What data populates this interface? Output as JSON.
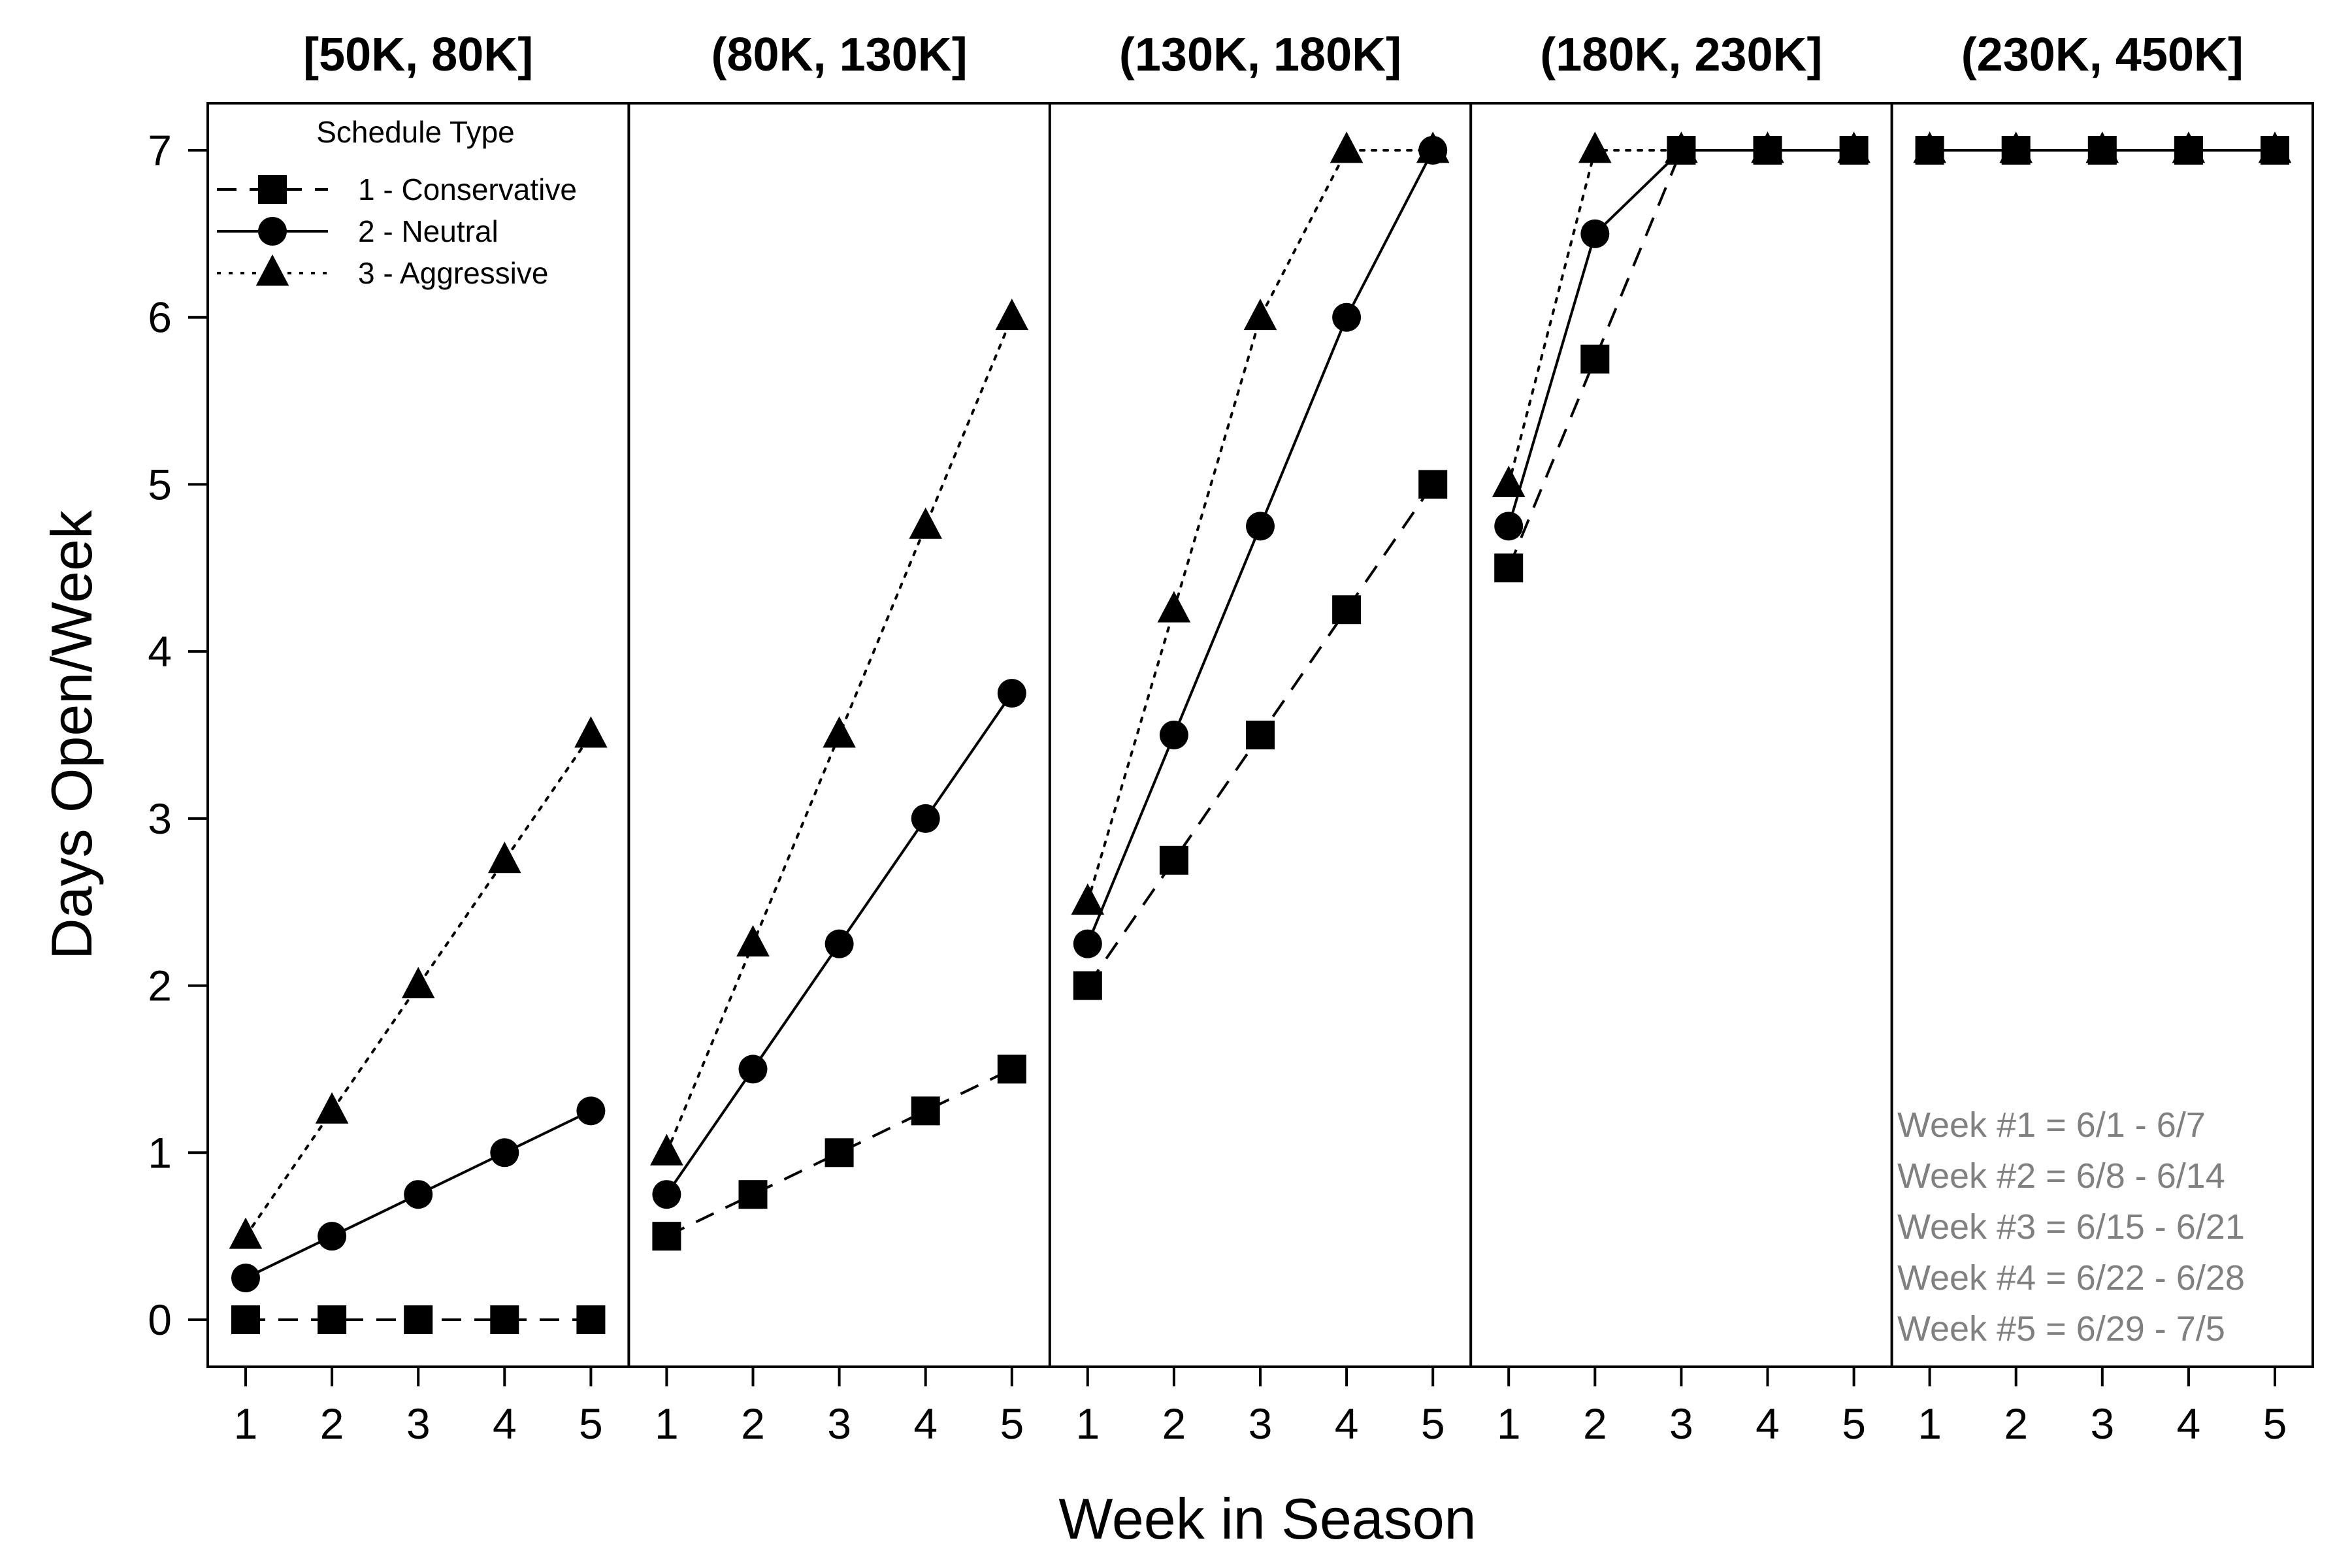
{
  "chart_data": {
    "type": "line",
    "xlabel": "Week in Season",
    "ylabel": "Days Open/Week",
    "ylim": [
      0,
      7
    ],
    "yticks": [
      0,
      1,
      2,
      3,
      4,
      5,
      6,
      7
    ],
    "xticks": [
      1,
      2,
      3,
      4,
      5
    ],
    "grid": false,
    "legend": {
      "title": "Schedule Type",
      "placement": "top-left",
      "entries": [
        {
          "label": "1 - Conservative",
          "marker": "square",
          "line": "dashed"
        },
        {
          "label": "2 - Neutral",
          "marker": "circle",
          "line": "solid"
        },
        {
          "label": "3 - Aggressive",
          "marker": "triangle",
          "line": "dotted"
        }
      ]
    },
    "note": [
      "Week #1 = 6/1 - 6/7",
      "Week #2 = 6/8 - 6/14",
      "Week #3 = 6/15 - 6/21",
      "Week #4 = 6/22 - 6/28",
      "Week #5 = 6/29 - 7/5"
    ],
    "panels": [
      {
        "title": "[50K, 80K]",
        "x": [
          1,
          2,
          3,
          4,
          5
        ],
        "series": [
          {
            "name": "1 - Conservative",
            "values": [
              0,
              0,
              0,
              0,
              0
            ]
          },
          {
            "name": "2 - Neutral",
            "values": [
              0.25,
              0.5,
              0.75,
              1,
              1.25
            ]
          },
          {
            "name": "3 - Aggressive",
            "values": [
              0.5,
              1.25,
              2,
              2.75,
              3.5
            ]
          }
        ]
      },
      {
        "title": "(80K, 130K]",
        "x": [
          1,
          2,
          3,
          4,
          5
        ],
        "series": [
          {
            "name": "1 - Conservative",
            "values": [
              0.5,
              0.75,
              1,
              1.25,
              1.5
            ]
          },
          {
            "name": "2 - Neutral",
            "values": [
              0.75,
              1.5,
              2.25,
              3,
              3.75
            ]
          },
          {
            "name": "3 - Aggressive",
            "values": [
              1,
              2.25,
              3.5,
              4.75,
              6
            ]
          }
        ]
      },
      {
        "title": "(130K, 180K]",
        "x": [
          1,
          2,
          3,
          4,
          5
        ],
        "series": [
          {
            "name": "1 - Conservative",
            "values": [
              2,
              2.75,
              3.5,
              4.25,
              5
            ]
          },
          {
            "name": "2 - Neutral",
            "values": [
              2.25,
              3.5,
              4.75,
              6,
              7
            ]
          },
          {
            "name": "3 - Aggressive",
            "values": [
              2.5,
              4.25,
              6,
              7,
              7
            ]
          }
        ]
      },
      {
        "title": "(180K, 230K]",
        "x": [
          1,
          2,
          3,
          4,
          5
        ],
        "series": [
          {
            "name": "1 - Conservative",
            "values": [
              4.5,
              5.75,
              7,
              7,
              7
            ]
          },
          {
            "name": "2 - Neutral",
            "values": [
              4.75,
              6.5,
              7,
              7,
              7
            ]
          },
          {
            "name": "3 - Aggressive",
            "values": [
              5,
              7,
              7,
              7,
              7
            ]
          }
        ]
      },
      {
        "title": "(230K, 450K]",
        "x": [
          1,
          2,
          3,
          4,
          5
        ],
        "series": [
          {
            "name": "1 - Conservative",
            "values": [
              7,
              7,
              7,
              7,
              7
            ]
          },
          {
            "name": "2 - Neutral",
            "values": [
              7,
              7,
              7,
              7,
              7
            ]
          },
          {
            "name": "3 - Aggressive",
            "values": [
              7,
              7,
              7,
              7,
              7
            ]
          }
        ]
      }
    ]
  }
}
